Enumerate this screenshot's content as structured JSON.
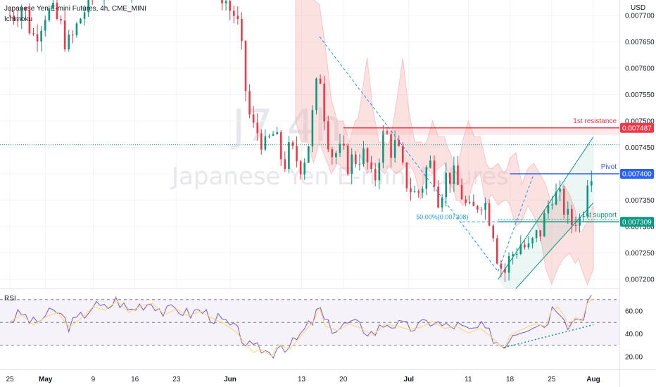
{
  "header": {
    "title": "Japanese Yen E-mini Futures, 4h, CME_MINI",
    "indicator": "Ichimoku",
    "currency": "USD"
  },
  "watermark": {
    "symbol": "J7",
    "interval": "4h",
    "name": "Japanese Yen E-mini Futures"
  },
  "chart_data": {
    "type": "candlestick",
    "title": "Japanese Yen E-mini Futures, 4h, CME_MINI",
    "ylim": [
      0.00718,
      0.00778
    ],
    "y_ticks": [
      "0.007200",
      "0.007250",
      "0.007300",
      "0.007350",
      "0.007400",
      "0.007450",
      "0.007500",
      "0.007550",
      "0.007600",
      "0.007650",
      "0.007700"
    ],
    "x_ticks": [
      "25",
      "May",
      "9",
      "16",
      "23",
      "Jun",
      "13",
      "20",
      "Jul",
      "11",
      "18",
      "25",
      "Aug"
    ],
    "x_tick_days": [
      0,
      6,
      14,
      21,
      28,
      37,
      49,
      56,
      67,
      77,
      84,
      91,
      98
    ],
    "series_close": [
      [
        0,
        0.0077
      ],
      [
        2,
        0.00772
      ],
      [
        4,
        0.00766
      ],
      [
        6,
        0.00771
      ],
      [
        8,
        0.00769
      ],
      [
        10,
        0.00764
      ],
      [
        12,
        0.0077
      ],
      [
        14,
        0.00774
      ],
      [
        16,
        0.00776
      ],
      [
        18,
        0.00778
      ],
      [
        20,
        0.00777
      ],
      [
        24,
        0.00781
      ],
      [
        27,
        0.00779
      ],
      [
        29,
        0.00781
      ],
      [
        31,
        0.00779
      ],
      [
        33,
        0.00778
      ],
      [
        35,
        0.00776
      ],
      [
        37,
        0.00771
      ],
      [
        38,
        0.0077
      ],
      [
        39,
        0.00762
      ],
      [
        40,
        0.00752
      ],
      [
        41,
        0.00748
      ],
      [
        42,
        0.00748
      ],
      [
        43,
        0.00744
      ],
      [
        44,
        0.00748
      ],
      [
        45,
        0.00745
      ],
      [
        46,
        0.00742
      ],
      [
        47,
        0.00744
      ],
      [
        49,
        0.00742
      ],
      [
        50,
        0.00745
      ],
      [
        51,
        0.00752
      ],
      [
        52,
        0.0076
      ],
      [
        53,
        0.0075
      ],
      [
        54,
        0.00744
      ],
      [
        55,
        0.00744
      ],
      [
        57,
        0.00742
      ],
      [
        59,
        0.00744
      ],
      [
        60,
        0.00742
      ],
      [
        61,
        0.00737
      ],
      [
        62,
        0.00744
      ],
      [
        63,
        0.00748
      ],
      [
        64,
        0.00745
      ],
      [
        65,
        0.00745
      ],
      [
        66,
        0.0074
      ],
      [
        67,
        0.00738
      ],
      [
        68,
        0.00736
      ],
      [
        69,
        0.00737
      ],
      [
        70,
        0.00741
      ],
      [
        71,
        0.00742
      ],
      [
        72,
        0.00736
      ],
      [
        73,
        0.00739
      ],
      [
        74,
        0.0074
      ],
      [
        75,
        0.00738
      ],
      [
        76,
        0.00736
      ],
      [
        77,
        0.00732
      ],
      [
        78,
        0.00733
      ],
      [
        79,
        0.00736
      ],
      [
        80,
        0.00734
      ],
      [
        81,
        0.00731
      ],
      [
        82,
        0.00724
      ],
      [
        83,
        0.00721
      ],
      [
        84,
        0.00724
      ],
      [
        85,
        0.00726
      ],
      [
        86,
        0.00727
      ],
      [
        87,
        0.00725
      ],
      [
        88,
        0.00727
      ],
      [
        89,
        0.00729
      ],
      [
        90,
        0.00732
      ],
      [
        91,
        0.00737
      ],
      [
        92,
        0.00735
      ],
      [
        93,
        0.00734
      ],
      [
        94,
        0.0073
      ],
      [
        95,
        0.00732
      ],
      [
        96,
        0.00731
      ],
      [
        97,
        0.0074
      ],
      [
        98,
        0.00742
      ]
    ],
    "levels": [
      {
        "name": "1st resistance",
        "value": "0.007487",
        "y": 0.007487,
        "color": "#f23645"
      },
      {
        "name": "Pivot",
        "value": "0.007400",
        "y": 0.0074,
        "color": "#2962ff"
      },
      {
        "name": "1st support",
        "value": "0.007309",
        "y": 0.007309,
        "color": "#089981"
      }
    ],
    "fib_label": "50.00%(0.007308)",
    "rsi": {
      "label": "RSI",
      "ylim": [
        10,
        75
      ],
      "y_ticks": [
        "60.00",
        "40.00",
        "20.00"
      ],
      "upper_band": 70,
      "middle_band": 50,
      "lower_band": 30,
      "values": [
        [
          0,
          52
        ],
        [
          2,
          58
        ],
        [
          4,
          49
        ],
        [
          6,
          56
        ],
        [
          8,
          60
        ],
        [
          10,
          47
        ],
        [
          12,
          55
        ],
        [
          14,
          65
        ],
        [
          16,
          62
        ],
        [
          18,
          70
        ],
        [
          20,
          60
        ],
        [
          22,
          66
        ],
        [
          24,
          68
        ],
        [
          26,
          58
        ],
        [
          28,
          63
        ],
        [
          30,
          57
        ],
        [
          32,
          61
        ],
        [
          34,
          55
        ],
        [
          36,
          50
        ],
        [
          38,
          43
        ],
        [
          40,
          30
        ],
        [
          41,
          25
        ],
        [
          42,
          28
        ],
        [
          44,
          22
        ],
        [
          45,
          32
        ],
        [
          47,
          28
        ],
        [
          49,
          40
        ],
        [
          51,
          52
        ],
        [
          52,
          64
        ],
        [
          53,
          48
        ],
        [
          55,
          44
        ],
        [
          57,
          50
        ],
        [
          59,
          46
        ],
        [
          61,
          40
        ],
        [
          63,
          50
        ],
        [
          65,
          48
        ],
        [
          67,
          45
        ],
        [
          69,
          47
        ],
        [
          71,
          52
        ],
        [
          73,
          46
        ],
        [
          75,
          48
        ],
        [
          77,
          42
        ],
        [
          79,
          46
        ],
        [
          81,
          38
        ],
        [
          83,
          28
        ],
        [
          84,
          40
        ],
        [
          86,
          45
        ],
        [
          88,
          50
        ],
        [
          90,
          48
        ],
        [
          91,
          62
        ],
        [
          92,
          65
        ],
        [
          93,
          58
        ],
        [
          94,
          46
        ],
        [
          95,
          56
        ],
        [
          96,
          52
        ],
        [
          97,
          68
        ],
        [
          98,
          72
        ]
      ]
    }
  }
}
